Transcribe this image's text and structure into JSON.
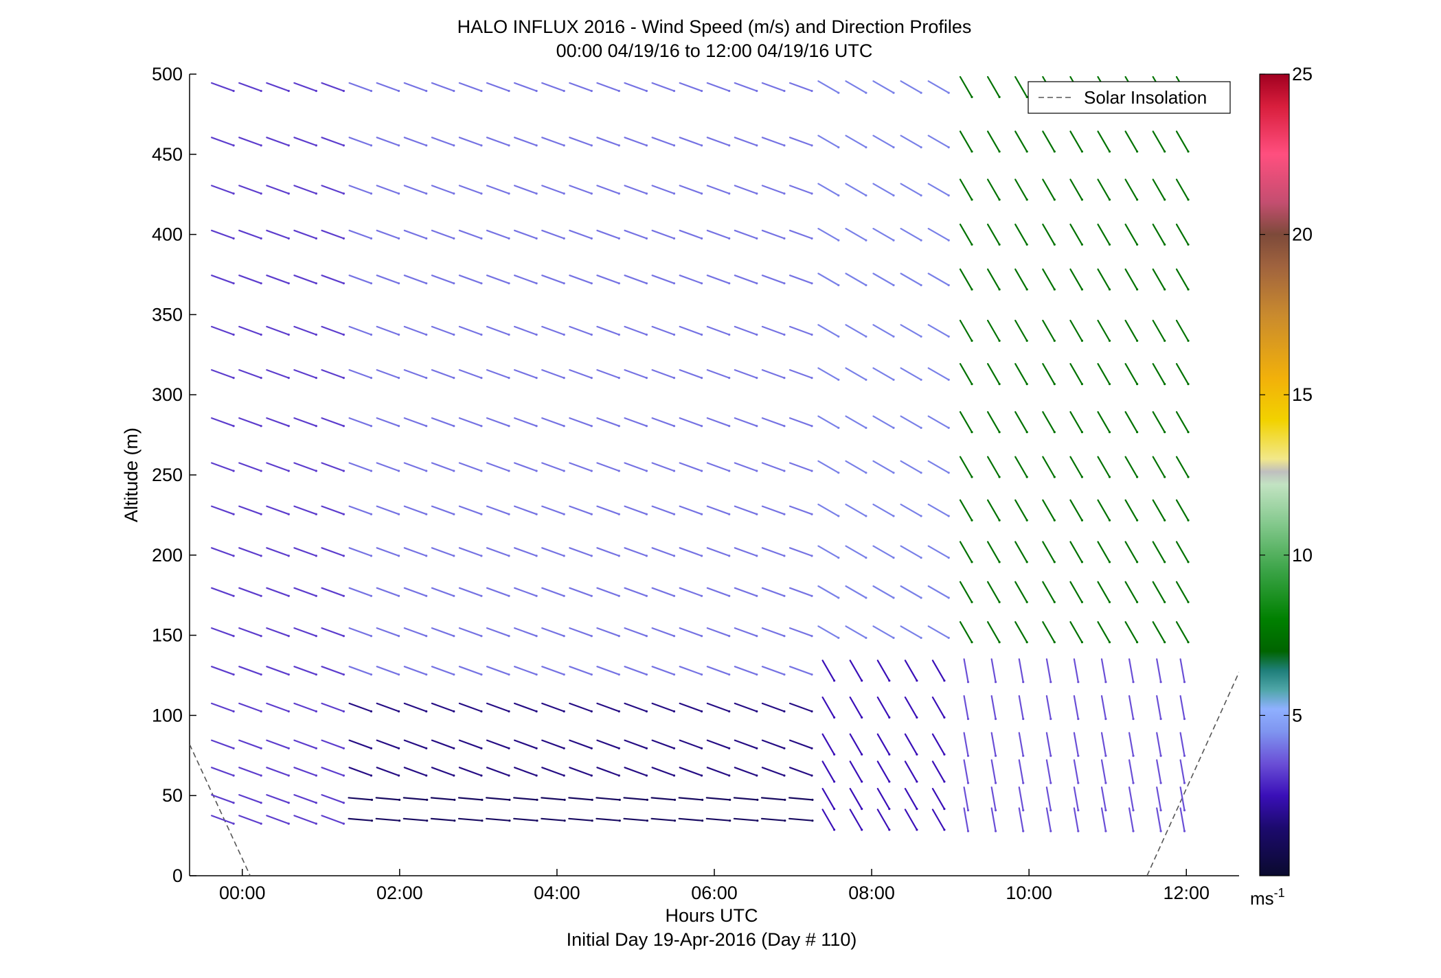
{
  "chart_data": {
    "type": "wind-barb-profile",
    "title": "HALO INFLUX 2016 - Wind Speed (m/s) and Direction Profiles",
    "subtitle": "00:00 04/19/16 to 12:00 04/19/16  UTC",
    "xlabel": "Hours UTC",
    "xlabel2": "Initial Day 19-Apr-2016 (Day # 110)",
    "ylabel": "Altitude (m)",
    "x_ticks": [
      "00:00",
      "02:00",
      "04:00",
      "06:00",
      "08:00",
      "10:00",
      "12:00"
    ],
    "x_tick_hours": [
      0,
      2,
      4,
      6,
      8,
      10,
      12
    ],
    "xlim_hours": [
      -0.67,
      12.67
    ],
    "y_ticks": [
      "0",
      "50",
      "100",
      "150",
      "200",
      "250",
      "300",
      "350",
      "400",
      "450",
      "500"
    ],
    "ylim": [
      0,
      500
    ],
    "grid": false,
    "legend": {
      "label": "Solar Insolation",
      "placement": "top-right",
      "style": "dashed",
      "color": "#555555"
    },
    "colorbar": {
      "label": "ms",
      "label_exponent": "-1",
      "range": [
        0,
        25
      ],
      "ticks": [
        "5",
        "10",
        "15",
        "20",
        "25"
      ],
      "tick_values": [
        5,
        10,
        15,
        20,
        25
      ],
      "stops": [
        {
          "v": 0.0,
          "c": "#0a0a2e"
        },
        {
          "v": 1.5,
          "c": "#1c0a6e"
        },
        {
          "v": 2.5,
          "c": "#3a0fb8"
        },
        {
          "v": 3.5,
          "c": "#6a4fd6"
        },
        {
          "v": 4.5,
          "c": "#7f95f0"
        },
        {
          "v": 5.2,
          "c": "#8fb0ff"
        },
        {
          "v": 5.8,
          "c": "#4fa6a8"
        },
        {
          "v": 6.4,
          "c": "#1f7f7a"
        },
        {
          "v": 7.0,
          "c": "#006400"
        },
        {
          "v": 8.0,
          "c": "#008000"
        },
        {
          "v": 9.5,
          "c": "#3aa346"
        },
        {
          "v": 11.0,
          "c": "#85c98e"
        },
        {
          "v": 12.2,
          "c": "#c2e3c2"
        },
        {
          "v": 12.6,
          "c": "#bfbfbf"
        },
        {
          "v": 13.0,
          "c": "#f2e88a"
        },
        {
          "v": 14.2,
          "c": "#f2d200"
        },
        {
          "v": 15.5,
          "c": "#f2b10a"
        },
        {
          "v": 17.5,
          "c": "#c98a2e"
        },
        {
          "v": 19.0,
          "c": "#a0633e"
        },
        {
          "v": 20.0,
          "c": "#7d4a3a"
        },
        {
          "v": 21.0,
          "c": "#c44e70"
        },
        {
          "v": 22.5,
          "c": "#ff4f7f"
        },
        {
          "v": 24.0,
          "c": "#d81e3c"
        },
        {
          "v": 25.0,
          "c": "#a00020"
        }
      ]
    },
    "solar_insolation": [
      {
        "t": -0.67,
        "alt": 82
      },
      {
        "t": 0.1,
        "alt": 0
      },
      {
        "t": 11.5,
        "alt": 0
      },
      {
        "t": 12.67,
        "alt": 127
      }
    ],
    "profile_times_hours": [
      -0.25,
      0.1,
      0.45,
      0.8,
      1.15,
      1.5,
      1.85,
      2.2,
      2.55,
      2.9,
      3.25,
      3.6,
      3.95,
      4.3,
      4.65,
      5.0,
      5.35,
      5.7,
      6.05,
      6.4,
      6.75,
      7.1,
      7.45,
      7.8,
      8.15,
      8.5,
      8.85,
      9.2,
      9.55,
      9.9,
      10.25,
      10.6,
      10.95,
      11.3,
      11.65,
      11.95
    ],
    "altitudes_m": [
      35,
      48,
      65,
      82,
      105,
      128,
      152,
      177,
      202,
      228,
      255,
      283,
      313,
      340,
      372,
      400,
      428,
      458,
      492
    ],
    "note_wind": "each barb points downwind; direction given in degrees (compass, from which wind blows) and speed in m/s",
    "wind_regimes": [
      {
        "t_from": -0.3,
        "t_to": 1.3,
        "alt_from": 0,
        "alt_to": 500,
        "dir_deg": 290,
        "speed": 3.2
      },
      {
        "t_from": 1.3,
        "t_to": 7.2,
        "alt_from": 0,
        "alt_to": 60,
        "dir_deg": 275,
        "speed": 1.2
      },
      {
        "t_from": 1.3,
        "t_to": 7.2,
        "alt_from": 60,
        "alt_to": 120,
        "dir_deg": 290,
        "speed": 1.8
      },
      {
        "t_from": 1.3,
        "t_to": 7.2,
        "alt_from": 120,
        "alt_to": 500,
        "dir_deg": 290,
        "speed": 4.0
      },
      {
        "t_from": 7.2,
        "t_to": 9.1,
        "alt_from": 0,
        "alt_to": 130,
        "dir_deg": 330,
        "speed": 2.5
      },
      {
        "t_from": 7.2,
        "t_to": 9.1,
        "alt_from": 130,
        "alt_to": 500,
        "dir_deg": 300,
        "speed": 4.2
      },
      {
        "t_from": 9.1,
        "t_to": 12.1,
        "alt_from": 0,
        "alt_to": 130,
        "dir_deg": 350,
        "speed": 3.5
      },
      {
        "t_from": 9.1,
        "t_to": 12.1,
        "alt_from": 130,
        "alt_to": 500,
        "dir_deg": 330,
        "speed": 7.5
      }
    ]
  }
}
